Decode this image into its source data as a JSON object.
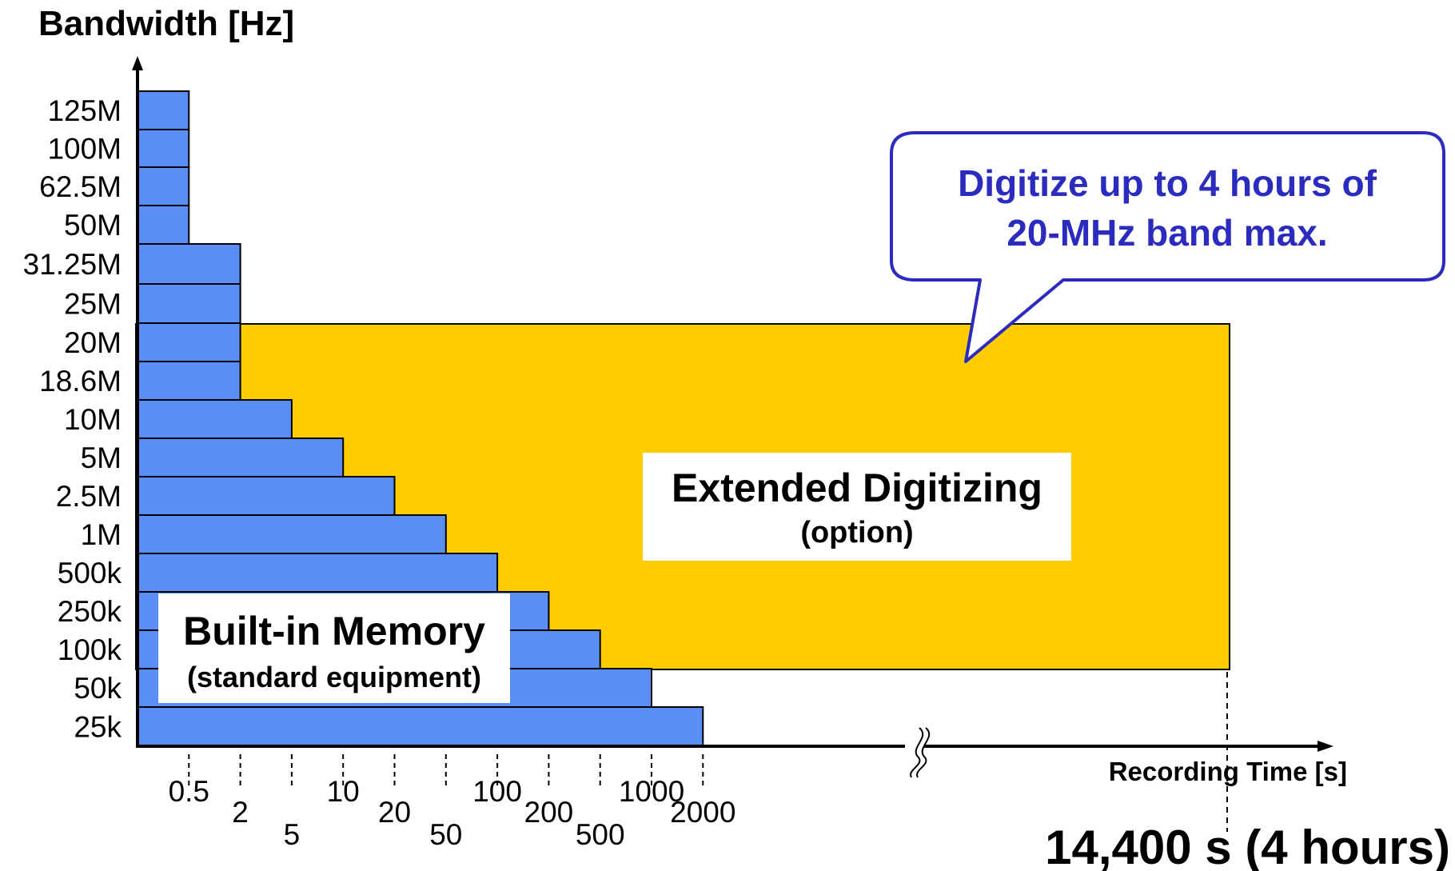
{
  "chart_data": {
    "type": "bar",
    "orientation": "horizontal",
    "title": "Bandwidth [Hz]",
    "xlabel": "Recording Time [s]",
    "categories": [
      "25k",
      "50k",
      "100k",
      "250k",
      "500k",
      "1M",
      "2.5M",
      "5M",
      "10M",
      "18.6M",
      "20M",
      "25M",
      "31.25M",
      "50M",
      "62.5M",
      "100M",
      "125M"
    ],
    "builtin_values": [
      2000,
      1000,
      500,
      200,
      100,
      50,
      20,
      10,
      5,
      2,
      2,
      2,
      2,
      0.5,
      0.5,
      0.5,
      0.5
    ],
    "x_ticks": [
      "0.5",
      "2",
      "5",
      "10",
      "20",
      "50",
      "100",
      "200",
      "500",
      "1000",
      "2000"
    ],
    "extended": {
      "label": "Extended Digitizing",
      "sublabel": "(option)",
      "max_time_s": 14400,
      "max_time_label": "14,400 s (4 hours)",
      "from_category": "25k",
      "to_category": "20M"
    },
    "builtin_label": "Built-in Memory",
    "builtin_sublabel": "(standard equipment)",
    "callout": {
      "line1": "Digitize up to 4 hours of",
      "line2": "20-MHz band max."
    },
    "colors": {
      "builtin_bar": "#5b8ef5",
      "extended_area": "#ffcc00",
      "callout_text": "#2b2bc0",
      "callout_border": "#2b2bc0"
    }
  }
}
